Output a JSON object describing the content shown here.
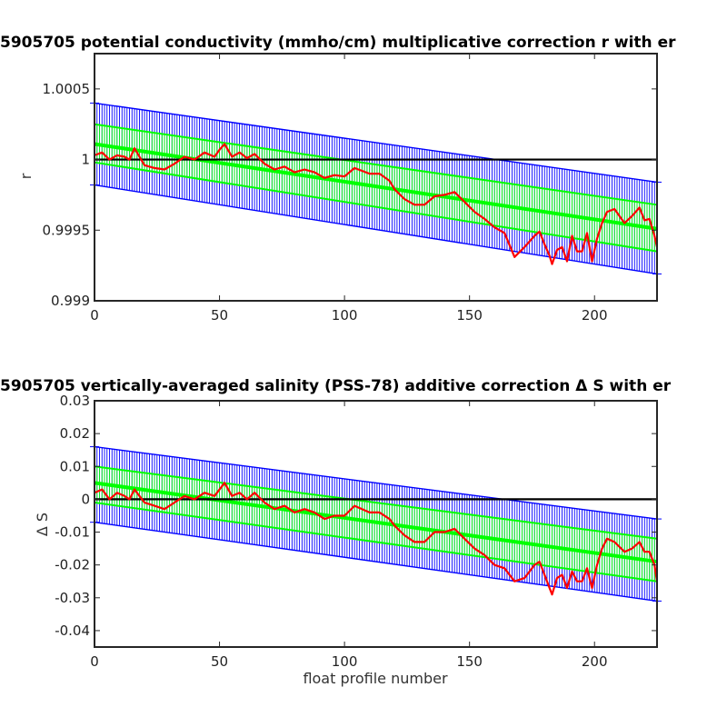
{
  "chart_data": [
    {
      "type": "line",
      "title": "5905705 potential conductivity (mmho/cm) multiplicative correction r with er",
      "xlabel": "",
      "ylabel": "r",
      "xlim": [
        0,
        225
      ],
      "ylim": [
        0.999,
        1.00075
      ],
      "x_ticks": [
        0,
        50,
        100,
        150,
        200
      ],
      "x_tick_labels": [
        "0",
        "50",
        "100",
        "150",
        "200"
      ],
      "y_ticks": [
        0.999,
        0.9995,
        1,
        1.0005
      ],
      "y_tick_labels": [
        "0.999",
        "0.9995",
        "1",
        "1.0005"
      ],
      "grid": false,
      "reference_line": 1,
      "colors": {
        "reference": "#000000",
        "error_envelope": "#0000ff",
        "fit": "#00ff00",
        "measured": "#ff0000"
      },
      "series": [
        {
          "role": "reference",
          "x": [
            0,
            225
          ],
          "values": [
            1,
            1
          ]
        },
        {
          "role": "outer-error-upper",
          "x": [
            0,
            225
          ],
          "values": [
            1.0004,
            0.99984
          ]
        },
        {
          "role": "outer-error-lower",
          "x": [
            0,
            225
          ],
          "values": [
            0.99982,
            0.99919
          ]
        },
        {
          "role": "fit-upper",
          "x": [
            0,
            225
          ],
          "values": [
            1.00025,
            0.99968
          ]
        },
        {
          "role": "fit-central",
          "x": [
            0,
            225
          ],
          "values": [
            1.00011,
            0.99951
          ]
        },
        {
          "role": "fit-lower",
          "x": [
            0,
            225
          ],
          "values": [
            0.99998,
            0.99935
          ]
        },
        {
          "role": "measured",
          "x": [
            0,
            3,
            6,
            9,
            12,
            14,
            16,
            18,
            20,
            24,
            28,
            32,
            36,
            40,
            44,
            48,
            50,
            52,
            55,
            58,
            61,
            64,
            68,
            72,
            76,
            80,
            84,
            88,
            92,
            96,
            100,
            104,
            107,
            110,
            114,
            118,
            120,
            124,
            128,
            132,
            136,
            140,
            144,
            148,
            152,
            156,
            160,
            164,
            168,
            172,
            176,
            178,
            180,
            182,
            183,
            185,
            187,
            189,
            191,
            193,
            195,
            197,
            199,
            201,
            203,
            205,
            208,
            212,
            215,
            218,
            220,
            222,
            224,
            225
          ],
          "values": [
            1.00003,
            1.00005,
            1.0,
            1.00003,
            1.00002,
            1.0,
            1.00008,
            1.00002,
            0.99996,
            0.99994,
            0.99993,
            0.99997,
            1.00002,
            1.0,
            1.00005,
            1.00002,
            1.00007,
            1.00011,
            1.00002,
            1.00005,
            1.00001,
            1.00004,
            0.99997,
            0.99993,
            0.99995,
            0.99991,
            0.99993,
            0.99991,
            0.99987,
            0.99989,
            0.99988,
            0.99994,
            0.99992,
            0.9999,
            0.9999,
            0.99985,
            0.99979,
            0.99972,
            0.99968,
            0.99968,
            0.99974,
            0.99975,
            0.99977,
            0.9997,
            0.99963,
            0.99958,
            0.99952,
            0.99948,
            0.99931,
            0.99938,
            0.99946,
            0.99949,
            0.9994,
            0.99932,
            0.99926,
            0.99936,
            0.99938,
            0.99928,
            0.99946,
            0.99935,
            0.99935,
            0.99948,
            0.99928,
            0.99944,
            0.99955,
            0.99963,
            0.99965,
            0.99955,
            0.9996,
            0.99966,
            0.99957,
            0.99958,
            0.99946,
            0.99938
          ]
        }
      ]
    },
    {
      "type": "line",
      "title": "5905705 vertically-averaged salinity (PSS-78) additive correction Δ S with er",
      "xlabel": "float profile number",
      "ylabel": "Δ S",
      "xlim": [
        0,
        225
      ],
      "ylim": [
        -0.045,
        0.03
      ],
      "x_ticks": [
        0,
        50,
        100,
        150,
        200
      ],
      "x_tick_labels": [
        "0",
        "50",
        "100",
        "150",
        "200"
      ],
      "y_ticks": [
        -0.04,
        -0.03,
        -0.02,
        -0.01,
        0,
        0.01,
        0.02,
        0.03
      ],
      "y_tick_labels": [
        "-0.04",
        "-0.03",
        "-0.02",
        "-0.01",
        "0",
        "0.01",
        "0.02",
        "0.03"
      ],
      "grid": false,
      "reference_line": 0,
      "colors": {
        "reference": "#000000",
        "error_envelope": "#0000ff",
        "fit": "#00ff00",
        "measured": "#ff0000"
      },
      "series": [
        {
          "role": "reference",
          "x": [
            0,
            225
          ],
          "values": [
            0,
            0
          ]
        },
        {
          "role": "outer-error-upper",
          "x": [
            0,
            225
          ],
          "values": [
            0.016,
            -0.006
          ]
        },
        {
          "role": "outer-error-lower",
          "x": [
            0,
            225
          ],
          "values": [
            -0.007,
            -0.031
          ]
        },
        {
          "role": "fit-upper",
          "x": [
            0,
            225
          ],
          "values": [
            0.01,
            -0.012
          ]
        },
        {
          "role": "fit-central",
          "x": [
            0,
            225
          ],
          "values": [
            0.005,
            -0.019
          ]
        },
        {
          "role": "fit-lower",
          "x": [
            0,
            225
          ],
          "values": [
            -0.001,
            -0.025
          ]
        },
        {
          "role": "measured",
          "x": [
            0,
            3,
            6,
            9,
            12,
            14,
            16,
            18,
            20,
            24,
            28,
            32,
            36,
            40,
            44,
            48,
            50,
            52,
            55,
            58,
            61,
            64,
            68,
            72,
            76,
            80,
            84,
            88,
            92,
            96,
            100,
            104,
            107,
            110,
            114,
            118,
            120,
            124,
            128,
            132,
            136,
            140,
            144,
            148,
            152,
            156,
            160,
            164,
            168,
            172,
            176,
            178,
            180,
            182,
            183,
            185,
            187,
            189,
            191,
            193,
            195,
            197,
            199,
            201,
            203,
            205,
            208,
            212,
            215,
            218,
            220,
            222,
            224,
            225
          ],
          "values": [
            0.002,
            0.003,
            0.0,
            0.002,
            0.001,
            0.0,
            0.003,
            0.001,
            -0.001,
            -0.002,
            -0.003,
            -0.001,
            0.001,
            0.0,
            0.002,
            0.001,
            0.003,
            0.005,
            0.001,
            0.002,
            0.0,
            0.002,
            -0.001,
            -0.003,
            -0.002,
            -0.004,
            -0.003,
            -0.004,
            -0.006,
            -0.005,
            -0.005,
            -0.002,
            -0.003,
            -0.004,
            -0.004,
            -0.006,
            -0.008,
            -0.011,
            -0.013,
            -0.013,
            -0.01,
            -0.01,
            -0.009,
            -0.012,
            -0.015,
            -0.017,
            -0.02,
            -0.021,
            -0.025,
            -0.024,
            -0.02,
            -0.019,
            -0.023,
            -0.027,
            -0.029,
            -0.024,
            -0.023,
            -0.027,
            -0.022,
            -0.025,
            -0.025,
            -0.021,
            -0.027,
            -0.02,
            -0.015,
            -0.012,
            -0.013,
            -0.016,
            -0.015,
            -0.013,
            -0.016,
            -0.016,
            -0.02,
            -0.025
          ]
        }
      ]
    }
  ]
}
